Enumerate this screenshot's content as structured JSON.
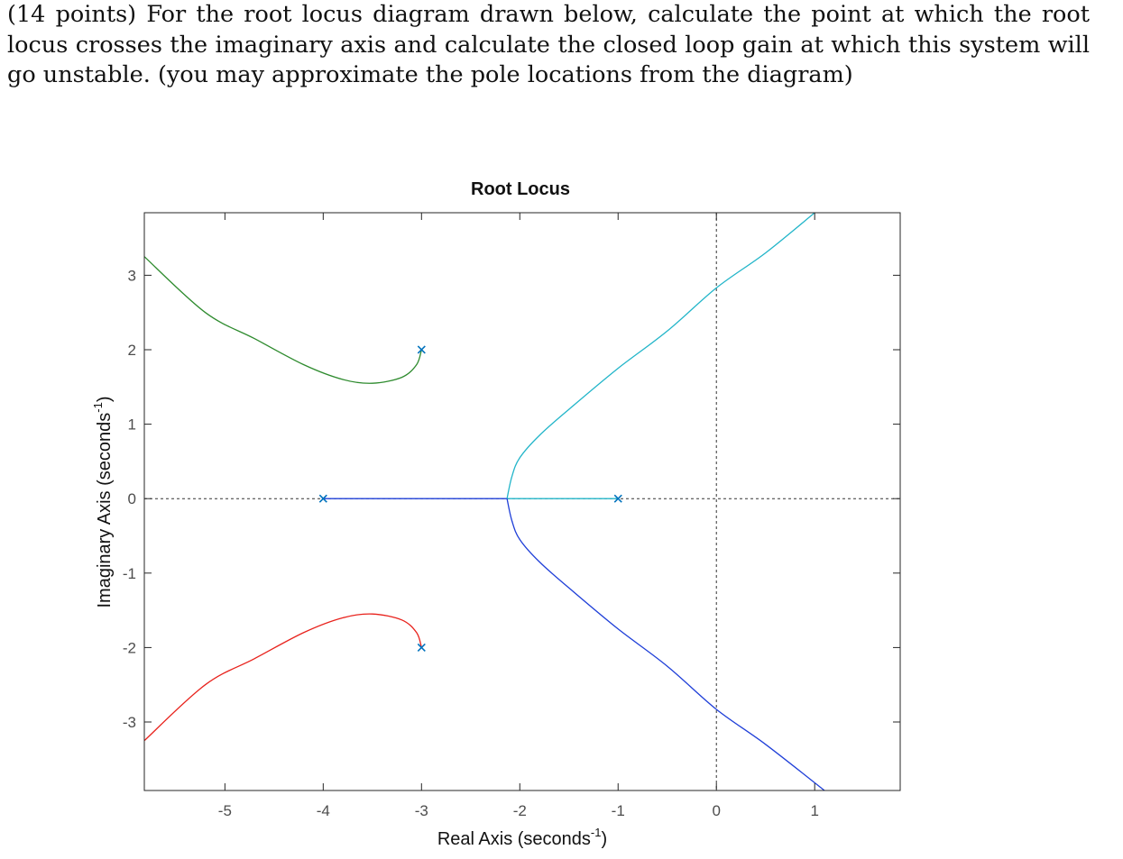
{
  "problem": {
    "text": "(14 points) For the root locus diagram drawn below, calculate the point at which the root locus crosses the imaginary axis and calculate the closed loop gain at which this system will go unstable. (you may approximate the pole locations from the diagram)"
  },
  "chart_data": {
    "type": "line",
    "title": "Root Locus",
    "xlabel": "Real Axis (seconds",
    "xlabel_sup": "-1",
    "xlabel_end": ")",
    "ylabel": "Imaginary Axis (seconds",
    "ylabel_sup": "-1",
    "ylabel_end": ")",
    "xlim": [
      -5.82,
      1.87
    ],
    "ylim": [
      -3.92,
      3.84
    ],
    "x_ticks": [
      -5,
      -4,
      -3,
      -2,
      -1,
      0,
      1
    ],
    "x_tick_labels": [
      "-5",
      "-4",
      "-3",
      "-2",
      "-1",
      "0",
      "1"
    ],
    "y_ticks": [
      -3,
      -2,
      -1,
      0,
      1,
      2,
      3
    ],
    "y_tick_labels": [
      "-3",
      "-2",
      "-1",
      "0",
      "1",
      "2",
      "3"
    ],
    "grid": false,
    "poles": [
      {
        "x": -4,
        "y": 0
      },
      {
        "x": -1,
        "y": 0
      },
      {
        "x": -3,
        "y": 2
      },
      {
        "x": -3,
        "y": -2
      }
    ],
    "pole_color": "#0072bd",
    "guide_color": "#333333",
    "series": [
      {
        "color": "#2e8b2e",
        "points": [
          [
            -3,
            2
          ],
          [
            -3.05,
            1.8
          ],
          [
            -3.2,
            1.63
          ],
          [
            -3.5,
            1.55
          ],
          [
            -3.8,
            1.6
          ],
          [
            -4.2,
            1.8
          ],
          [
            -4.7,
            2.15
          ],
          [
            -5.2,
            2.5
          ],
          [
            -5.82,
            3.25
          ]
        ]
      },
      {
        "color": "#e8221c",
        "points": [
          [
            -3,
            -2
          ],
          [
            -3.05,
            -1.8
          ],
          [
            -3.2,
            -1.63
          ],
          [
            -3.5,
            -1.55
          ],
          [
            -3.8,
            -1.6
          ],
          [
            -4.2,
            -1.8
          ],
          [
            -4.7,
            -2.15
          ],
          [
            -5.2,
            -2.5
          ],
          [
            -5.82,
            -3.25
          ]
        ]
      },
      {
        "color": "#1f3fd8",
        "points": [
          [
            -4,
            0
          ],
          [
            -2.13,
            0
          ]
        ]
      },
      {
        "color": "#22b5c9",
        "points": [
          [
            -1,
            0
          ],
          [
            -2.13,
            0
          ]
        ]
      },
      {
        "color": "#22b5c9",
        "points": [
          [
            -2.13,
            0
          ],
          [
            -2.08,
            0.3
          ],
          [
            -2.0,
            0.55
          ],
          [
            -1.8,
            0.85
          ],
          [
            -1.5,
            1.2
          ],
          [
            -1.0,
            1.75
          ],
          [
            -0.5,
            2.25
          ],
          [
            0,
            2.83
          ],
          [
            0.5,
            3.3
          ],
          [
            1.0,
            3.84
          ]
        ]
      },
      {
        "color": "#1f3fd8",
        "points": [
          [
            -2.13,
            0
          ],
          [
            -2.08,
            -0.3
          ],
          [
            -2.0,
            -0.55
          ],
          [
            -1.8,
            -0.85
          ],
          [
            -1.5,
            -1.2
          ],
          [
            -1.0,
            -1.75
          ],
          [
            -0.5,
            -2.25
          ],
          [
            0,
            -2.83
          ],
          [
            0.5,
            -3.3
          ],
          [
            1.1,
            -3.92
          ]
        ]
      }
    ]
  }
}
